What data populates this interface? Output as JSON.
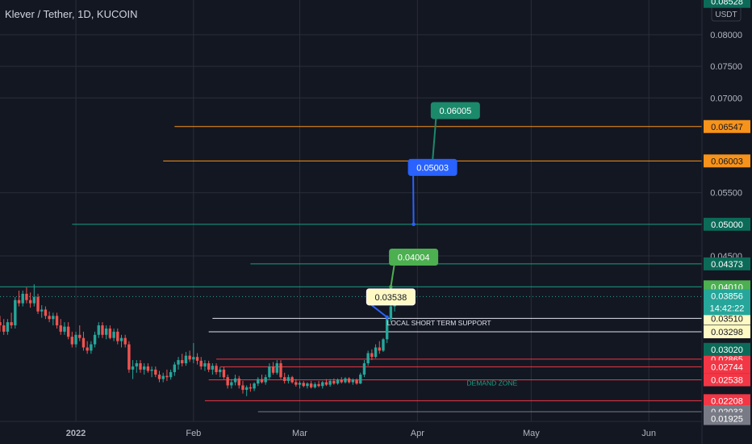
{
  "header": {
    "title": "Klever / Tether, 1D, KUCOIN"
  },
  "currency_label": "USDT",
  "countdown": "14:42:22",
  "colors": {
    "background": "#131722",
    "up": "#26a69a",
    "down": "#ef5350",
    "grid": "#2a2e39",
    "axis_text": "#b2b5be",
    "orange": "#f7931a",
    "teal": "#16a085",
    "red": "#f23645",
    "white": "#e0e3eb",
    "gray": "#787b86"
  },
  "chart_data": {
    "type": "candlestick",
    "title": "Klever / Tether, 1D, KUCOIN",
    "ylim": [
      0.0188,
      0.0855
    ],
    "x_range": [
      "2021-12-12",
      "2022-06-15"
    ],
    "grid": true,
    "y_ticks": [
      {
        "value": 0.08,
        "label": "0.08000"
      },
      {
        "value": 0.075,
        "label": "0.07500"
      },
      {
        "value": 0.07,
        "label": "0.07000"
      },
      {
        "value": 0.055,
        "label": "0.05500"
      },
      {
        "value": 0.045,
        "label": "0.04500"
      }
    ],
    "top_price": {
      "value": 0.08528,
      "label": "0.08528"
    },
    "x_ticks": [
      {
        "date": "2022-01-01",
        "label": "2022"
      },
      {
        "date": "2022-02-01",
        "label": "Feb"
      },
      {
        "date": "2022-03-01",
        "label": "Mar"
      },
      {
        "date": "2022-04-01",
        "label": "Apr"
      },
      {
        "date": "2022-05-01",
        "label": "May"
      },
      {
        "date": "2022-06-01",
        "label": "Jun"
      }
    ],
    "candles": {
      "start_date": "2021-12-12",
      "ohlc": [
        [
          0.0345,
          0.0355,
          0.033,
          0.034
        ],
        [
          0.034,
          0.035,
          0.0325,
          0.033
        ],
        [
          0.033,
          0.035,
          0.0325,
          0.0345
        ],
        [
          0.0345,
          0.036,
          0.0335,
          0.034
        ],
        [
          0.034,
          0.0385,
          0.0335,
          0.038
        ],
        [
          0.038,
          0.0395,
          0.037,
          0.0375
        ],
        [
          0.0375,
          0.0395,
          0.037,
          0.039
        ],
        [
          0.039,
          0.04,
          0.0375,
          0.038
        ],
        [
          0.038,
          0.0392,
          0.0368,
          0.0375
        ],
        [
          0.0375,
          0.0405,
          0.037,
          0.0385
        ],
        [
          0.0385,
          0.039,
          0.0358,
          0.0362
        ],
        [
          0.0362,
          0.0372,
          0.0352,
          0.0365
        ],
        [
          0.0365,
          0.037,
          0.035,
          0.0355
        ],
        [
          0.0355,
          0.0362,
          0.0345,
          0.035
        ],
        [
          0.035,
          0.036,
          0.034,
          0.0355
        ],
        [
          0.0355,
          0.036,
          0.0335,
          0.034
        ],
        [
          0.034,
          0.035,
          0.0325,
          0.033
        ],
        [
          0.033,
          0.0345,
          0.0325,
          0.0338
        ],
        [
          0.0338,
          0.0345,
          0.0318,
          0.0322
        ],
        [
          0.0322,
          0.033,
          0.0305,
          0.031
        ],
        [
          0.031,
          0.033,
          0.0305,
          0.0325
        ],
        [
          0.0325,
          0.034,
          0.0315,
          0.032
        ],
        [
          0.032,
          0.033,
          0.03,
          0.0305
        ],
        [
          0.0305,
          0.0315,
          0.0295,
          0.03
        ],
        [
          0.03,
          0.0315,
          0.0295,
          0.031
        ],
        [
          0.031,
          0.033,
          0.0305,
          0.0325
        ],
        [
          0.0325,
          0.0345,
          0.032,
          0.034
        ],
        [
          0.034,
          0.0345,
          0.032,
          0.0325
        ],
        [
          0.0325,
          0.034,
          0.0318,
          0.0335
        ],
        [
          0.0335,
          0.034,
          0.0318,
          0.032
        ],
        [
          0.032,
          0.0335,
          0.0315,
          0.033
        ],
        [
          0.033,
          0.0335,
          0.031,
          0.0315
        ],
        [
          0.0315,
          0.0325,
          0.0305,
          0.032
        ],
        [
          0.032,
          0.0325,
          0.0305,
          0.031
        ],
        [
          0.031,
          0.0315,
          0.0265,
          0.027
        ],
        [
          0.027,
          0.0285,
          0.0255,
          0.0275
        ],
        [
          0.0275,
          0.0285,
          0.0265,
          0.028
        ],
        [
          0.028,
          0.0285,
          0.0265,
          0.027
        ],
        [
          0.027,
          0.028,
          0.0262,
          0.0275
        ],
        [
          0.0275,
          0.028,
          0.0265,
          0.0268
        ],
        [
          0.0268,
          0.0275,
          0.0258,
          0.027
        ],
        [
          0.027,
          0.0275,
          0.0258,
          0.0262
        ],
        [
          0.0262,
          0.0268,
          0.025,
          0.0255
        ],
        [
          0.0255,
          0.0265,
          0.025,
          0.026
        ],
        [
          0.026,
          0.027,
          0.0252,
          0.0258
        ],
        [
          0.0258,
          0.027,
          0.0254,
          0.0266
        ],
        [
          0.0266,
          0.0282,
          0.026,
          0.0278
        ],
        [
          0.0278,
          0.029,
          0.027,
          0.0285
        ],
        [
          0.0285,
          0.0295,
          0.0275,
          0.028
        ],
        [
          0.028,
          0.0298,
          0.0276,
          0.0292
        ],
        [
          0.0292,
          0.03,
          0.0282,
          0.0286
        ],
        [
          0.0286,
          0.0312,
          0.028,
          0.029
        ],
        [
          0.029,
          0.0296,
          0.0278,
          0.0284
        ],
        [
          0.0284,
          0.029,
          0.027,
          0.0275
        ],
        [
          0.0275,
          0.0285,
          0.0268,
          0.028
        ],
        [
          0.028,
          0.0284,
          0.0266,
          0.027
        ],
        [
          0.027,
          0.028,
          0.0262,
          0.0276
        ],
        [
          0.0276,
          0.028,
          0.0262,
          0.0266
        ],
        [
          0.0266,
          0.0274,
          0.0258,
          0.027
        ],
        [
          0.027,
          0.0274,
          0.0255,
          0.0258
        ],
        [
          0.0258,
          0.0262,
          0.024,
          0.0245
        ],
        [
          0.0245,
          0.0255,
          0.024,
          0.025
        ],
        [
          0.025,
          0.0262,
          0.0245,
          0.0256
        ],
        [
          0.0256,
          0.026,
          0.024,
          0.0245
        ],
        [
          0.0245,
          0.0252,
          0.0232,
          0.0238
        ],
        [
          0.0238,
          0.0245,
          0.0228,
          0.0242
        ],
        [
          0.0242,
          0.0248,
          0.0235,
          0.024
        ],
        [
          0.024,
          0.025,
          0.0236,
          0.0248
        ],
        [
          0.0248,
          0.0258,
          0.0244,
          0.0255
        ],
        [
          0.0255,
          0.0262,
          0.0248,
          0.025
        ],
        [
          0.025,
          0.0262,
          0.0246,
          0.0258
        ],
        [
          0.0258,
          0.028,
          0.0255,
          0.0275
        ],
        [
          0.0275,
          0.0282,
          0.0262,
          0.0265
        ],
        [
          0.0265,
          0.0285,
          0.0262,
          0.028
        ],
        [
          0.028,
          0.0285,
          0.0255,
          0.0258
        ],
        [
          0.0258,
          0.0265,
          0.0248,
          0.0252
        ],
        [
          0.0252,
          0.0262,
          0.0248,
          0.0258
        ],
        [
          0.0258,
          0.026,
          0.0248,
          0.025
        ],
        [
          0.025,
          0.0255,
          0.0243,
          0.0246
        ],
        [
          0.0246,
          0.0252,
          0.024,
          0.0249
        ],
        [
          0.0249,
          0.0252,
          0.0242,
          0.0244
        ],
        [
          0.0244,
          0.025,
          0.024,
          0.0248
        ],
        [
          0.0248,
          0.0252,
          0.024,
          0.0242
        ],
        [
          0.0242,
          0.025,
          0.024,
          0.0247
        ],
        [
          0.0247,
          0.0252,
          0.0242,
          0.0244
        ],
        [
          0.0244,
          0.0252,
          0.024,
          0.025
        ],
        [
          0.025,
          0.0255,
          0.0244,
          0.0246
        ],
        [
          0.0246,
          0.0255,
          0.0243,
          0.0252
        ],
        [
          0.0252,
          0.0256,
          0.0246,
          0.0248
        ],
        [
          0.0248,
          0.0256,
          0.0246,
          0.0254
        ],
        [
          0.0254,
          0.0258,
          0.0248,
          0.025
        ],
        [
          0.025,
          0.0258,
          0.0248,
          0.0256
        ],
        [
          0.0256,
          0.0258,
          0.0248,
          0.025
        ],
        [
          0.025,
          0.0256,
          0.0246,
          0.0254
        ],
        [
          0.0254,
          0.0256,
          0.0246,
          0.0248
        ],
        [
          0.0248,
          0.0265,
          0.0247,
          0.0262
        ],
        [
          0.0262,
          0.0285,
          0.0258,
          0.028
        ],
        [
          0.028,
          0.03,
          0.0276,
          0.0296
        ],
        [
          0.0296,
          0.0302,
          0.0285,
          0.029
        ],
        [
          0.029,
          0.031,
          0.0288,
          0.0305
        ],
        [
          0.0305,
          0.0315,
          0.0295,
          0.03
        ],
        [
          0.03,
          0.032,
          0.0298,
          0.0318
        ],
        [
          0.0318,
          0.0355,
          0.0312,
          0.035
        ],
        [
          0.035,
          0.0375,
          0.0345,
          0.037
        ],
        [
          0.037,
          0.0395,
          0.0362,
          0.0386
        ]
      ]
    },
    "horizontal_lines": [
      {
        "value": 0.06547,
        "from": "2022-01-27",
        "color": "orange",
        "label": "0.06547"
      },
      {
        "value": 0.06003,
        "from": "2022-01-24",
        "color": "orange",
        "label": "0.06003"
      },
      {
        "value": 0.05,
        "from": "2021-12-31",
        "color": "teal",
        "label": "0.05000"
      },
      {
        "value": 0.04373,
        "from": "2022-02-16",
        "color": "teal",
        "label": "0.04373"
      },
      {
        "value": 0.0401,
        "from": "2021-12-12",
        "color": "teal",
        "label": "0.04010"
      },
      {
        "value": 0.0351,
        "from": "2022-02-06",
        "color": "white",
        "label": "0.03510"
      },
      {
        "value": 0.03298,
        "from": "2022-02-05",
        "color": "white",
        "label": "0.03298"
      },
      {
        "value": 0.02865,
        "from": "2022-02-07",
        "color": "red",
        "label": "0.02865"
      },
      {
        "value": 0.02744,
        "from": "2022-02-08",
        "color": "red",
        "label": "0.02744"
      },
      {
        "value": 0.02538,
        "from": "2022-02-05",
        "color": "red",
        "label": "0.02538"
      },
      {
        "value": 0.02208,
        "from": "2022-02-04",
        "color": "red",
        "label": "0.02208"
      },
      {
        "value": 0.02033,
        "from": "2022-02-18",
        "color": "gray",
        "label": "0.02033"
      }
    ],
    "axis_badges": [
      {
        "value": 0.03856,
        "label": "0.03856",
        "color": "up"
      },
      {
        "value": 0.0302,
        "label": "0.03020",
        "color": "teal_dark"
      },
      {
        "value": 0.01925,
        "label": "0.01925",
        "color": "gray"
      }
    ],
    "callouts": [
      {
        "label": "0.06005",
        "date": "2022-04-11",
        "value": 0.068,
        "target_date": "2022-04-05",
        "target_value": 0.06005,
        "color": "#1b8a6b"
      },
      {
        "label": "0.05003",
        "date": "2022-04-05",
        "value": 0.059,
        "target_date": "2022-03-31",
        "target_value": 0.05,
        "color": "#2962ff"
      },
      {
        "label": "0.04004",
        "date": "2022-03-31",
        "value": 0.0448,
        "target_date": "2022-03-25",
        "target_value": 0.0401,
        "color": "#4caf50"
      },
      {
        "label": "0.03538",
        "date": "2022-03-25",
        "value": 0.0385,
        "target_date": "2022-03-24",
        "target_value": 0.0353,
        "color": "#fff9c4"
      }
    ],
    "annotations": [
      {
        "text": "LOCAL SHORT TERM SUPPORT",
        "date": "2022-03-24",
        "value": 0.034
      },
      {
        "text": "DEMAND ZONE",
        "date": "2022-04-14",
        "value": 0.0245
      }
    ]
  }
}
